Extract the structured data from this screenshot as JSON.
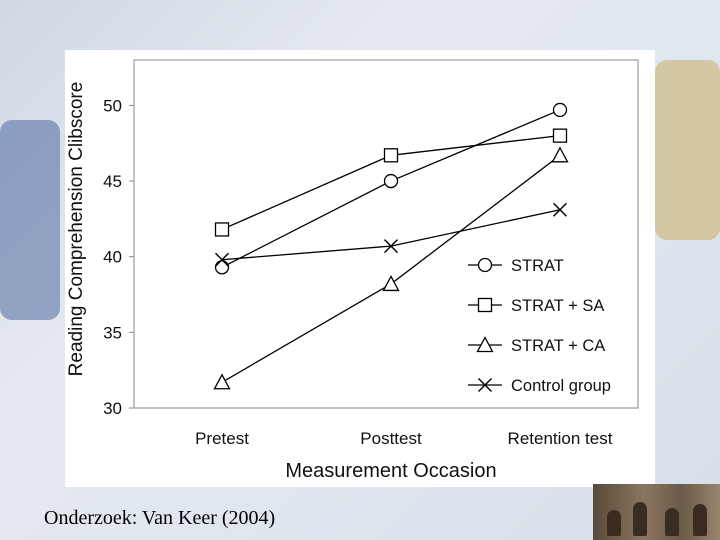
{
  "caption": "Onderzoek: Van Keer (2004)",
  "chart_data": {
    "type": "line",
    "title": "",
    "xlabel": "Measurement Occasion",
    "ylabel": "Reading Comprehension Clibscore",
    "categories": [
      "Pretest",
      "Posttest",
      "Retention test"
    ],
    "ylim": [
      30,
      53
    ],
    "yticks": [
      30,
      35,
      40,
      45,
      50
    ],
    "grid": false,
    "legend_position": "bottom-right",
    "series": [
      {
        "name": "STRAT",
        "marker": "circle",
        "values": [
          39.3,
          45.0,
          49.7
        ]
      },
      {
        "name": "STRAT + SA",
        "marker": "square",
        "values": [
          41.8,
          46.7,
          48.0
        ]
      },
      {
        "name": "STRAT + CA",
        "marker": "triangle",
        "values": [
          31.7,
          38.2,
          46.7
        ]
      },
      {
        "name": "Control group",
        "marker": "x",
        "values": [
          39.8,
          40.7,
          43.1
        ]
      }
    ],
    "line_color": "#000000"
  }
}
